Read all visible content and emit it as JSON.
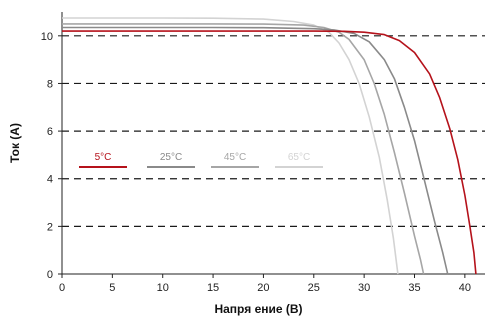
{
  "chart_data": {
    "type": "line",
    "title": "",
    "xlabel": "Напря   ение (В)",
    "ylabel": "Ток (А)",
    "xlim": [
      0,
      42
    ],
    "ylim": [
      0,
      11
    ],
    "x_ticks": [
      0,
      5,
      10,
      15,
      20,
      25,
      30,
      35,
      40
    ],
    "y_ticks": [
      0,
      2,
      4,
      6,
      8,
      10
    ],
    "grid": "horizontal dashed at y = 2, 4, 6, 8, 10",
    "legend_position": "middle-left",
    "series": [
      {
        "name": "5°C",
        "color": "#b5121b",
        "points": [
          [
            0,
            10.2
          ],
          [
            5,
            10.2
          ],
          [
            10,
            10.2
          ],
          [
            15,
            10.2
          ],
          [
            20,
            10.2
          ],
          [
            25,
            10.2
          ],
          [
            28,
            10.19
          ],
          [
            30,
            10.15
          ],
          [
            32,
            10.05
          ],
          [
            33.5,
            9.8
          ],
          [
            35,
            9.3
          ],
          [
            36.5,
            8.4
          ],
          [
            37.5,
            7.4
          ],
          [
            38.5,
            6.1
          ],
          [
            39.3,
            4.8
          ],
          [
            40,
            3.3
          ],
          [
            40.5,
            2.0
          ],
          [
            40.9,
            0.9
          ],
          [
            41.1,
            0
          ]
        ]
      },
      {
        "name": "25°C",
        "color": "#8a8a8a",
        "points": [
          [
            0,
            10.35
          ],
          [
            5,
            10.35
          ],
          [
            10,
            10.35
          ],
          [
            15,
            10.35
          ],
          [
            20,
            10.34
          ],
          [
            25,
            10.3
          ],
          [
            27,
            10.25
          ],
          [
            29,
            10.1
          ],
          [
            30.5,
            9.75
          ],
          [
            32,
            9.0
          ],
          [
            33,
            8.2
          ],
          [
            34,
            7.0
          ],
          [
            35,
            5.6
          ],
          [
            36,
            3.9
          ],
          [
            37,
            2.2
          ],
          [
            37.8,
            0.9
          ],
          [
            38.3,
            0
          ]
        ]
      },
      {
        "name": "45°C",
        "color": "#a6a6a6",
        "points": [
          [
            0,
            10.5
          ],
          [
            5,
            10.5
          ],
          [
            10,
            10.5
          ],
          [
            15,
            10.5
          ],
          [
            20,
            10.49
          ],
          [
            24,
            10.45
          ],
          [
            26,
            10.35
          ],
          [
            27.5,
            10.15
          ],
          [
            28.5,
            9.85
          ],
          [
            30,
            9.0
          ],
          [
            31,
            8.0
          ],
          [
            32,
            6.7
          ],
          [
            33,
            5.1
          ],
          [
            34,
            3.4
          ],
          [
            35,
            1.6
          ],
          [
            35.6,
            0.6
          ],
          [
            35.9,
            0
          ]
        ]
      },
      {
        "name": "65°C",
        "color": "#d3d3d3",
        "points": [
          [
            0,
            10.75
          ],
          [
            5,
            10.75
          ],
          [
            10,
            10.75
          ],
          [
            15,
            10.74
          ],
          [
            20,
            10.7
          ],
          [
            23,
            10.6
          ],
          [
            25,
            10.45
          ],
          [
            26.5,
            10.15
          ],
          [
            27.5,
            9.7
          ],
          [
            28.5,
            9.0
          ],
          [
            29.5,
            8.0
          ],
          [
            30.5,
            6.6
          ],
          [
            31.5,
            4.9
          ],
          [
            32.3,
            3.1
          ],
          [
            32.9,
            1.5
          ],
          [
            33.2,
            0.5
          ],
          [
            33.35,
            0
          ]
        ]
      }
    ]
  }
}
